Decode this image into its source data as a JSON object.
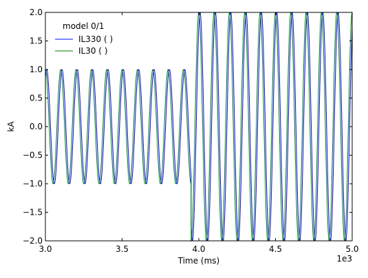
{
  "chart_data": {
    "type": "line",
    "title": "",
    "xlabel": "Time (ms)",
    "ylabel": "kA",
    "x_offset_label": "1e3",
    "xlim": [
      3000,
      5000
    ],
    "ylim": [
      -2.0,
      2.0
    ],
    "x_ticks": [
      3000,
      3500,
      4000,
      4500,
      5000
    ],
    "x_tick_labels": [
      "3.0",
      "3.5",
      "4.0",
      "4.5",
      "5.0"
    ],
    "y_ticks": [
      -2.0,
      -1.5,
      -1.0,
      -0.5,
      0.0,
      0.5,
      1.0,
      1.5,
      2.0
    ],
    "y_tick_labels": [
      "−2.0",
      "−1.5",
      "−1.0",
      "−0.5",
      "0.0",
      "0.5",
      "1.0",
      "1.5",
      "2.0"
    ],
    "grid": false,
    "legend": {
      "title": "model 0/1",
      "position": "top-left"
    },
    "series": [
      {
        "name": "IL330 ( )",
        "color": "#0000ff",
        "function": "piecewise-sine",
        "period_ms": 100,
        "phase_deg": 60,
        "segments": [
          {
            "x_start": 3000,
            "x_end": 3950,
            "amplitude": 1.0
          },
          {
            "x_start": 3950,
            "x_end": 5000,
            "amplitude": 2.0
          }
        ]
      },
      {
        "name": "IL30 ( )",
        "color": "#008000",
        "function": "piecewise-sine",
        "period_ms": 100,
        "phase_deg": 90,
        "segments": [
          {
            "x_start": 3000,
            "x_end": 3950,
            "amplitude": 1.0
          },
          {
            "x_start": 3950,
            "x_end": 5000,
            "amplitude": 2.0
          }
        ]
      }
    ]
  }
}
